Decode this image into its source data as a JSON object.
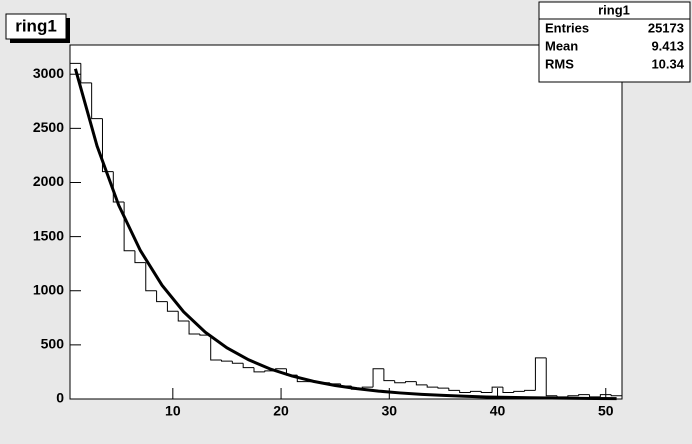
{
  "chart_data": {
    "type": "histogram",
    "title": "ring1",
    "bins": [
      0.5,
      1.5,
      2.5,
      3.5,
      4.5,
      5.5,
      6.5,
      7.5,
      8.5,
      9.5,
      10.5,
      11.5,
      12.5,
      13.5,
      14.5,
      15.5,
      16.5,
      17.5,
      18.5,
      19.5,
      20.5,
      21.5,
      22.5,
      23.5,
      24.5,
      25.5,
      26.5,
      27.5,
      28.5,
      29.5,
      30.5,
      31.5,
      32.5,
      33.5,
      34.5,
      35.5,
      36.5,
      37.5,
      38.5,
      39.5,
      40.5,
      41.5,
      42.5,
      43.5,
      44.5,
      45.5,
      46.5,
      47.5,
      48.5,
      49.5,
      50.5,
      51.5
    ],
    "values": [
      3100,
      2920,
      2590,
      2100,
      1820,
      1370,
      1260,
      1000,
      900,
      810,
      720,
      600,
      590,
      360,
      350,
      330,
      290,
      250,
      260,
      280,
      220,
      160,
      160,
      150,
      140,
      120,
      90,
      110,
      280,
      170,
      150,
      160,
      130,
      110,
      100,
      80,
      60,
      70,
      60,
      110,
      60,
      70,
      80,
      380,
      30,
      20,
      30,
      40,
      20,
      40,
      30
    ],
    "color": "#000000",
    "fit": {
      "x": [
        1,
        3,
        5,
        7,
        9,
        11,
        13,
        15,
        17,
        19,
        21,
        23,
        25,
        27,
        29,
        31,
        33,
        35,
        37,
        39,
        41,
        43,
        45,
        47,
        49,
        51
      ],
      "values": [
        3050,
        2337,
        1790,
        1372,
        1051,
        805,
        617,
        473,
        362,
        277,
        213,
        163,
        125,
        96,
        73,
        56,
        43,
        33,
        25,
        19,
        15,
        11,
        9,
        7,
        5,
        4
      ],
      "color": "#000000"
    },
    "xlim": [
      0.5,
      51.5
    ],
    "ylim": [
      0,
      3270
    ],
    "xticks": [
      10,
      20,
      30,
      40,
      50
    ],
    "yticks": [
      0,
      500,
      1000,
      1500,
      2000,
      2500,
      3000
    ],
    "stats": {
      "title": "ring1",
      "rows": [
        {
          "label": "Entries",
          "value": 25173
        },
        {
          "label": "Mean",
          "value": 9.413
        },
        {
          "label": "RMS",
          "value": 10.34
        }
      ]
    }
  }
}
